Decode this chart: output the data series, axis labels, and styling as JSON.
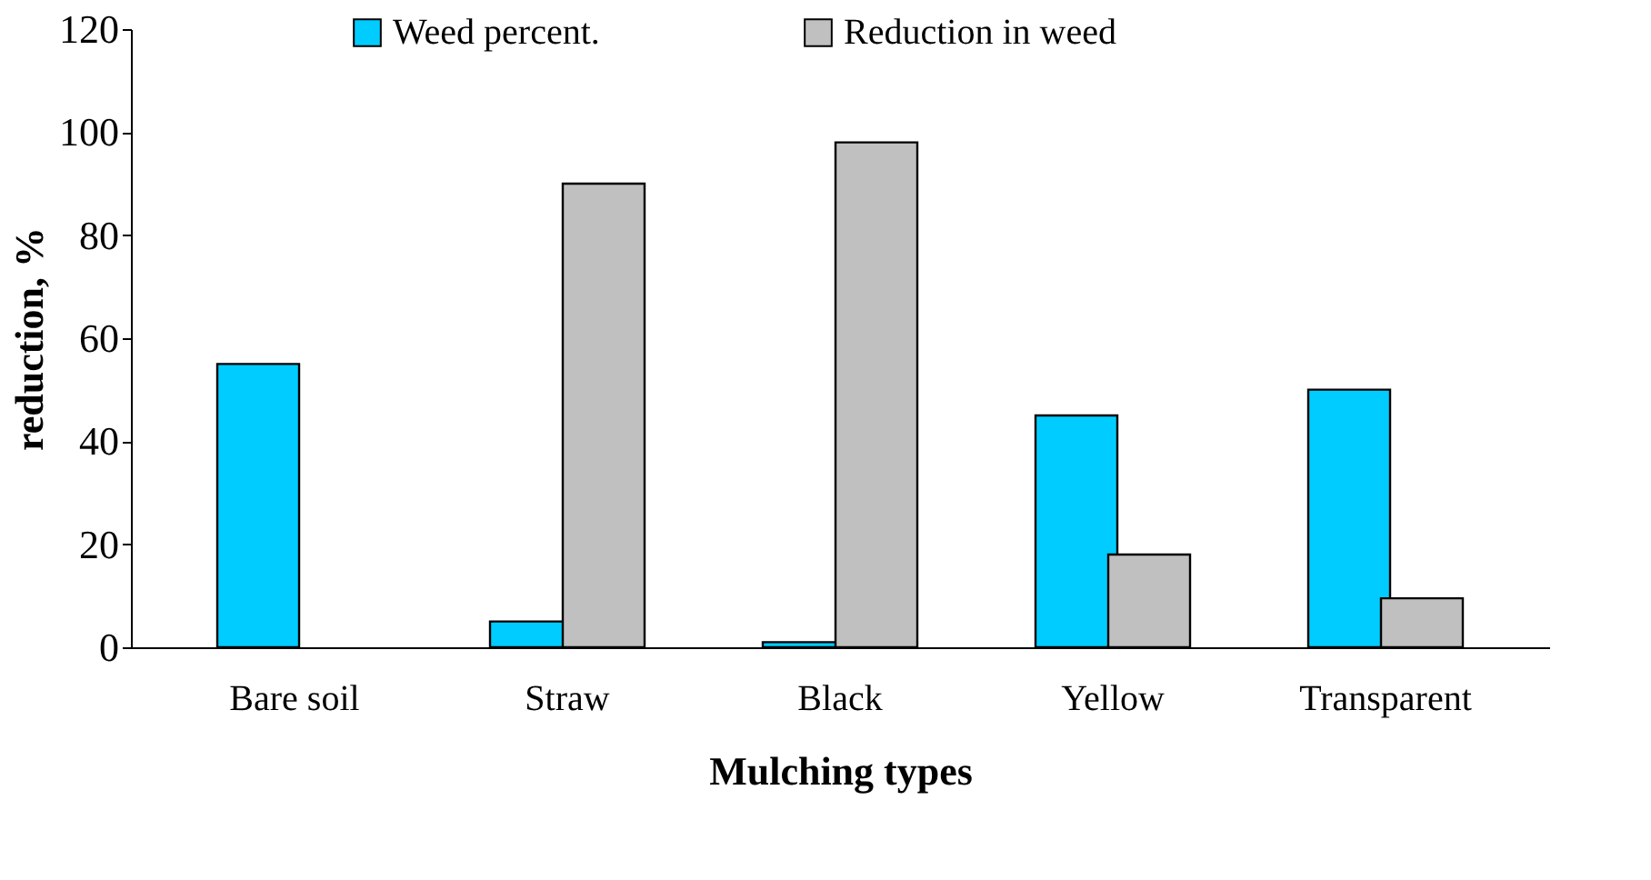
{
  "chart_data": {
    "type": "bar",
    "xlabel": "Mulching types",
    "ylabel": "reduction, %",
    "categories": [
      "Bare soil",
      "Straw",
      "Black",
      "Yellow",
      "Transparent"
    ],
    "series": [
      {
        "name": "Weed percent.",
        "color": "#00ccff",
        "values": [
          55,
          5,
          1,
          45,
          50
        ]
      },
      {
        "name": "Reduction in weed",
        "color": "#c0c0c0",
        "values": [
          null,
          90,
          98,
          18,
          9.5
        ]
      }
    ],
    "ylim": [
      0,
      120
    ],
    "yticks": [
      0,
      20,
      40,
      60,
      80,
      100,
      120
    ],
    "grid": false,
    "legend": "top"
  }
}
